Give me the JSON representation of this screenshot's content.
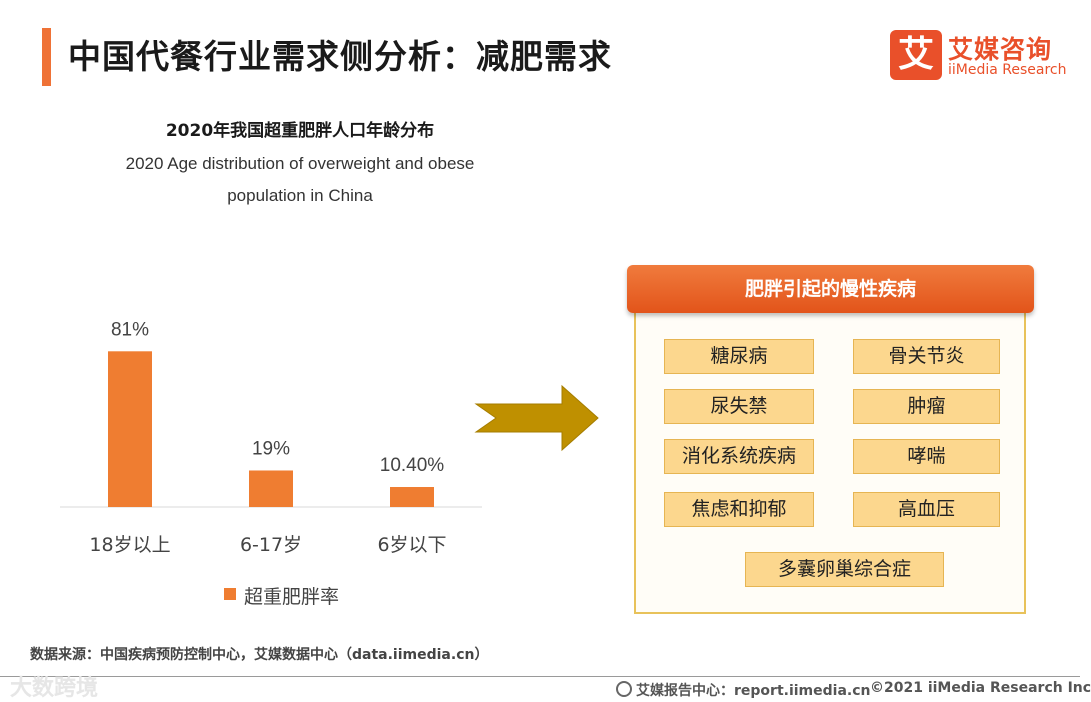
{
  "header": {
    "title": "中国代餐行业需求侧分析：减肥需求",
    "logo_mark": "艾",
    "logo_cn": "艾媒咨询",
    "logo_en": "iiMedia Research"
  },
  "chart_data": {
    "type": "bar",
    "title": "2020年我国超重肥胖人口年龄分布",
    "subtitle_line1": "2020 Age distribution of overweight and obese",
    "subtitle_line2": "population in China",
    "categories": [
      "18岁以上",
      "6-17岁",
      "6岁以下"
    ],
    "series": [
      {
        "name": "超重肥胖率",
        "values": [
          81,
          19,
          10.4
        ],
        "labels": [
          "81%",
          "19%",
          "10.40%"
        ],
        "color": "#ef7d31"
      }
    ],
    "ylim": [
      0,
      90
    ],
    "grid": false,
    "legend_position": "bottom"
  },
  "panel": {
    "title": "肥胖引起的慢性疾病",
    "diseases": [
      "糖尿病",
      "骨关节炎",
      "尿失禁",
      "肿瘤",
      "消化系统疾病",
      "哮喘",
      "焦虑和抑郁",
      "高血压",
      "多囊卵巢综合症"
    ]
  },
  "footer": {
    "source": "数据来源：中国疾病预防控制中心，艾媒数据中心（data.iimedia.cn）",
    "report": "艾媒报告中心：report.iimedia.cn",
    "copyright": "©2021  iiMedia Research  Inc",
    "watermark": "大数跨境"
  },
  "colors": {
    "accent": "#ef7236",
    "bar": "#ef7d31",
    "arrow": "#bf9000",
    "panel_border": "#e8c25a",
    "disease_fill": "#fcd78e"
  }
}
